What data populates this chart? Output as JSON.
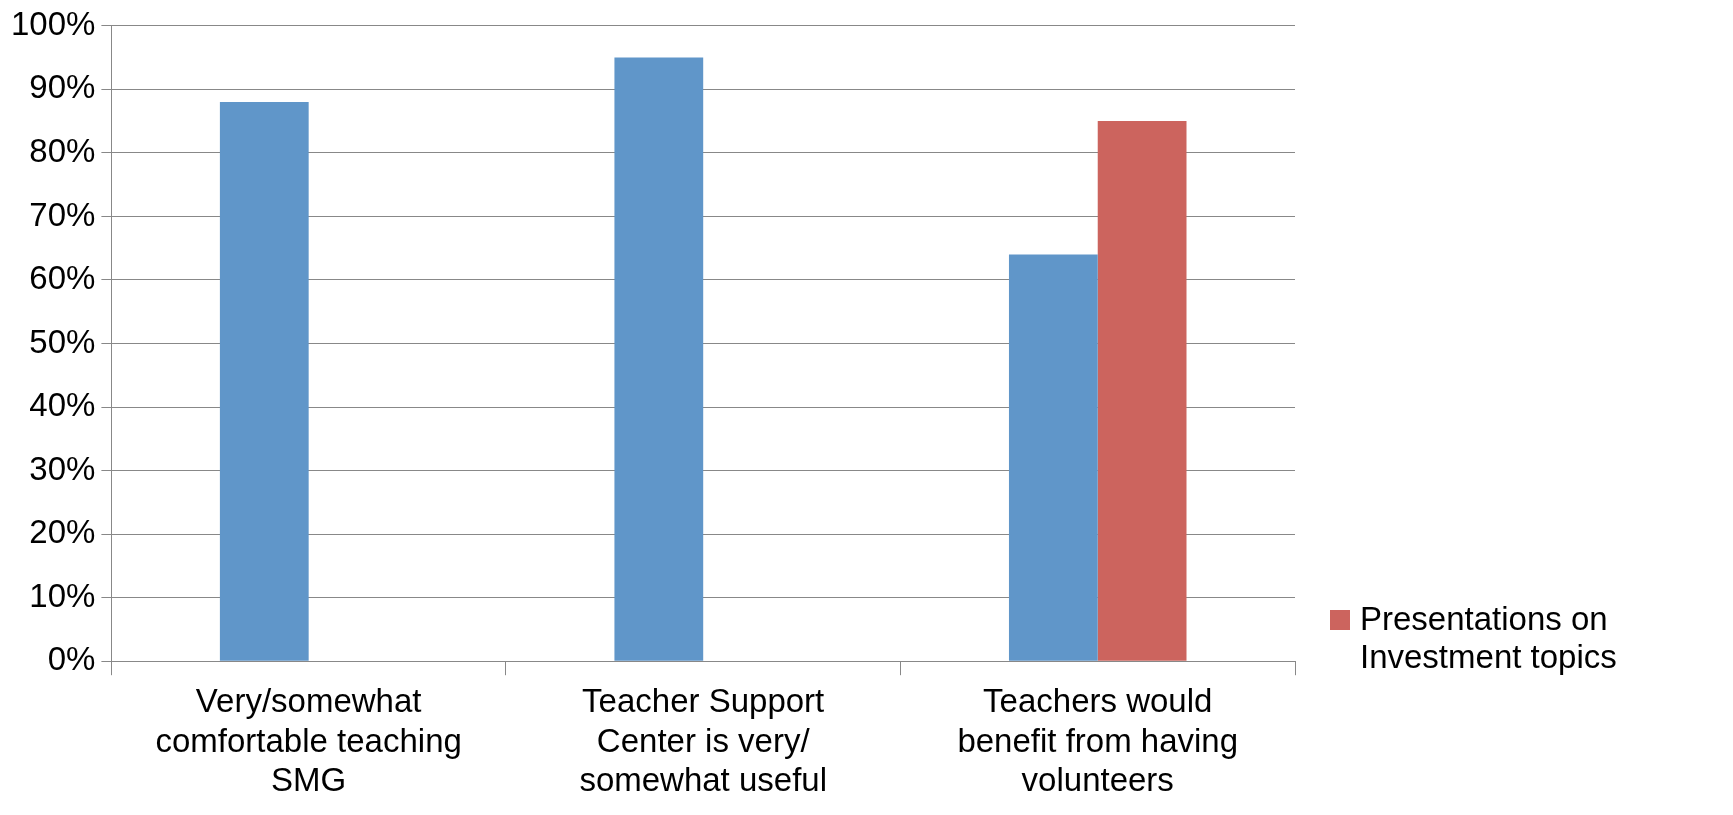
{
  "chart_data": {
    "type": "bar",
    "categories": [
      "Very/somewhat comfortable teaching SMG",
      "Teacher Support Center is very/somewhat useful",
      "Teachers would benefit from having volunteers"
    ],
    "series": [
      {
        "color": "#6096c9",
        "values": [
          88,
          95,
          64
        ]
      },
      {
        "name": "Presentations on Investment topics",
        "color": "#cc645e",
        "values": [
          null,
          null,
          85
        ]
      }
    ],
    "ylim": [
      0,
      100
    ],
    "yticks": [
      {
        "value": 0,
        "label": "0%"
      },
      {
        "value": 10,
        "label": "10%"
      },
      {
        "value": 20,
        "label": "20%"
      },
      {
        "value": 30,
        "label": "30%"
      },
      {
        "value": 40,
        "label": "40%"
      },
      {
        "value": 50,
        "label": "50%"
      },
      {
        "value": 60,
        "label": "60%"
      },
      {
        "value": 70,
        "label": "70%"
      },
      {
        "value": 80,
        "label": "80%"
      },
      {
        "value": 90,
        "label": "90%"
      },
      {
        "value": 100,
        "label": "100%"
      }
    ],
    "grid": "y",
    "legend": "right"
  }
}
